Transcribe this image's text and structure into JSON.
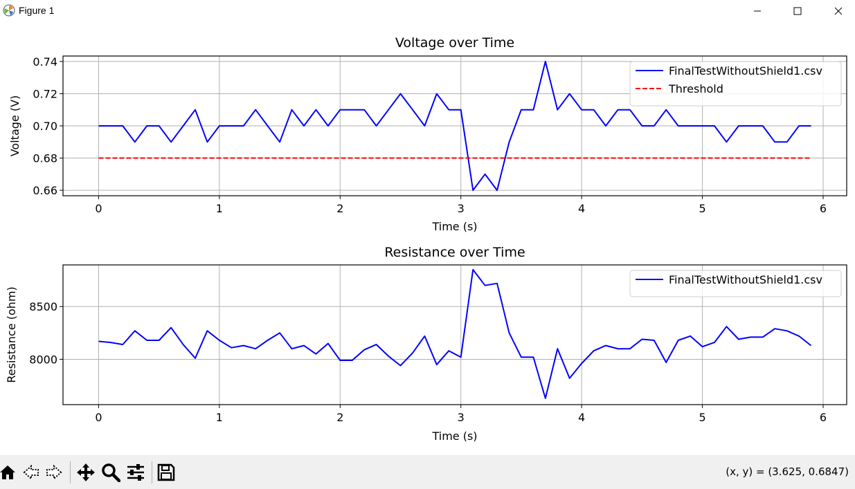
{
  "window": {
    "title": "Figure 1",
    "icons": [
      "matplotlib-icon",
      "minimize-icon",
      "maximize-icon",
      "close-icon"
    ]
  },
  "toolbar": {
    "icons": [
      "home-icon",
      "back-icon",
      "forward-icon",
      "pan-icon",
      "zoom-icon",
      "configure-subplots-icon",
      "save-icon"
    ],
    "coords_label": "(x, y) = (3.625, 0.6847)"
  },
  "colors": {
    "series": "#0000ff",
    "threshold": "#ff0000",
    "grid": "#b0b0b0"
  },
  "chart_data": [
    {
      "type": "line",
      "title": "Voltage over Time",
      "xlabel": "Time (s)",
      "ylabel": "Voltage (V)",
      "xlim": [
        -0.295,
        6.195
      ],
      "ylim": [
        0.6566,
        0.7434
      ],
      "xticks": [
        0,
        1,
        2,
        3,
        4,
        5,
        6
      ],
      "xtick_labels": [
        "0",
        "1",
        "2",
        "3",
        "4",
        "5",
        "6"
      ],
      "yticks": [
        0.66,
        0.68,
        0.7,
        0.72,
        0.74
      ],
      "ytick_labels": [
        "0.66",
        "0.68",
        "0.70",
        "0.72",
        "0.74"
      ],
      "grid": true,
      "legend": "top-right",
      "x": [
        0,
        0.1,
        0.2,
        0.3,
        0.4,
        0.5,
        0.6,
        0.7,
        0.8,
        0.9,
        1.0,
        1.1,
        1.2,
        1.3,
        1.4,
        1.5,
        1.6,
        1.7,
        1.8,
        1.9,
        2.0,
        2.1,
        2.2,
        2.3,
        2.4,
        2.5,
        2.6,
        2.7,
        2.8,
        2.9,
        3.0,
        3.1,
        3.2,
        3.3,
        3.4,
        3.5,
        3.6,
        3.7,
        3.8,
        3.9,
        4.0,
        4.1,
        4.2,
        4.3,
        4.4,
        4.5,
        4.6,
        4.7,
        4.8,
        4.9,
        5.0,
        5.1,
        5.2,
        5.3,
        5.4,
        5.5,
        5.6,
        5.7,
        5.8,
        5.9
      ],
      "series": [
        {
          "name": "FinalTestWithoutShield1.csv",
          "style": "solid",
          "color": "#0000ff",
          "values": [
            0.7,
            0.7,
            0.7,
            0.69,
            0.7,
            0.7,
            0.69,
            0.7,
            0.71,
            0.69,
            0.7,
            0.7,
            0.7,
            0.71,
            0.7,
            0.69,
            0.71,
            0.7,
            0.71,
            0.7,
            0.71,
            0.71,
            0.71,
            0.7,
            0.71,
            0.72,
            0.71,
            0.7,
            0.72,
            0.71,
            0.71,
            0.66,
            0.67,
            0.66,
            0.69,
            0.71,
            0.71,
            0.74,
            0.71,
            0.72,
            0.71,
            0.71,
            0.7,
            0.71,
            0.71,
            0.7,
            0.7,
            0.71,
            0.7,
            0.7,
            0.7,
            0.7,
            0.69,
            0.7,
            0.7,
            0.7,
            0.69,
            0.69,
            0.7,
            0.7
          ]
        },
        {
          "name": "Threshold",
          "style": "dashed",
          "color": "#ff0000",
          "values": [
            0.68,
            0.68,
            0.68,
            0.68,
            0.68,
            0.68,
            0.68,
            0.68,
            0.68,
            0.68,
            0.68,
            0.68,
            0.68,
            0.68,
            0.68,
            0.68,
            0.68,
            0.68,
            0.68,
            0.68,
            0.68,
            0.68,
            0.68,
            0.68,
            0.68,
            0.68,
            0.68,
            0.68,
            0.68,
            0.68,
            0.68,
            0.68,
            0.68,
            0.68,
            0.68,
            0.68,
            0.68,
            0.68,
            0.68,
            0.68,
            0.68,
            0.68,
            0.68,
            0.68,
            0.68,
            0.68,
            0.68,
            0.68,
            0.68,
            0.68,
            0.68,
            0.68,
            0.68,
            0.68,
            0.68,
            0.68,
            0.68,
            0.68,
            0.68,
            0.68
          ]
        }
      ]
    },
    {
      "type": "line",
      "title": "Resistance over Time",
      "xlabel": "Time (s)",
      "ylabel": "Resistance (ohm)",
      "xlim": [
        -0.295,
        6.195
      ],
      "ylim": [
        7570,
        8895
      ],
      "xticks": [
        0,
        1,
        2,
        3,
        4,
        5,
        6
      ],
      "xtick_labels": [
        "0",
        "1",
        "2",
        "3",
        "4",
        "5",
        "6"
      ],
      "yticks": [
        8000,
        8500
      ],
      "ytick_labels": [
        "8000",
        "8500"
      ],
      "grid": true,
      "legend": "top-right",
      "x": [
        0,
        0.1,
        0.2,
        0.3,
        0.4,
        0.5,
        0.6,
        0.7,
        0.8,
        0.9,
        1.0,
        1.1,
        1.2,
        1.3,
        1.4,
        1.5,
        1.6,
        1.7,
        1.8,
        1.9,
        2.0,
        2.1,
        2.2,
        2.3,
        2.4,
        2.5,
        2.6,
        2.7,
        2.8,
        2.9,
        3.0,
        3.1,
        3.2,
        3.3,
        3.4,
        3.5,
        3.6,
        3.7,
        3.8,
        3.9,
        4.0,
        4.1,
        4.2,
        4.3,
        4.4,
        4.5,
        4.6,
        4.7,
        4.8,
        4.9,
        5.0,
        5.1,
        5.2,
        5.3,
        5.4,
        5.5,
        5.6,
        5.7,
        5.8,
        5.9
      ],
      "series": [
        {
          "name": "FinalTestWithoutShield1.csv",
          "style": "solid",
          "color": "#0000ff",
          "values": [
            8170,
            8160,
            8140,
            8270,
            8180,
            8180,
            8300,
            8140,
            8010,
            8270,
            8180,
            8110,
            8130,
            8100,
            8180,
            8250,
            8100,
            8130,
            8050,
            8150,
            7990,
            7990,
            8090,
            8140,
            8030,
            7940,
            8060,
            8220,
            7950,
            8080,
            8020,
            8850,
            8700,
            8720,
            8250,
            8020,
            8020,
            7630,
            8100,
            7820,
            7960,
            8080,
            8130,
            8100,
            8100,
            8190,
            8180,
            7970,
            8180,
            8220,
            8120,
            8160,
            8310,
            8190,
            8210,
            8210,
            8290,
            8270,
            8220,
            8130
          ]
        }
      ]
    }
  ]
}
